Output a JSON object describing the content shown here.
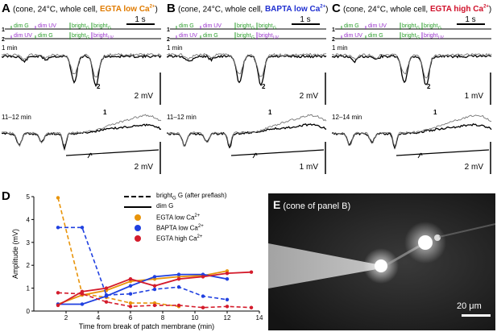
{
  "panels": [
    {
      "letter": "A",
      "title_pre": "(cone, 24°C, whole cell, ",
      "title_hl": "EGTA low Ca",
      "title_sup": "2+",
      "title_post": ")",
      "hl_color": "#e07b00",
      "scale_top": "2 mV",
      "scale_bot": "2 mV",
      "time_top": "1 min",
      "time_bot": "11–12 min",
      "scale_time": "1 s"
    },
    {
      "letter": "B",
      "title_pre": "(cone, 24°C, whole cell, ",
      "title_hl": "BAPTA low Ca",
      "title_sup": "2+",
      "title_post": ")",
      "hl_color": "#2030d0",
      "scale_top": "2 mV",
      "scale_bot": "1 mV",
      "time_top": "1 min",
      "time_bot": "11–12 min",
      "scale_time": "1 s"
    },
    {
      "letter": "C",
      "title_pre": "(cone, 24°C, whole cell, ",
      "title_hl": "EGTA high Ca",
      "title_sup": "2+",
      "title_post": ")",
      "hl_color": "#d0102a",
      "scale_top": "1 mV",
      "scale_bot": "2 mV",
      "time_top": "1 min",
      "time_bot": "12–14 min",
      "scale_time": "1 s"
    }
  ],
  "stim": {
    "row1": [
      "dim G",
      "dim UV",
      "bright",
      "G",
      "bright",
      "G"
    ],
    "row2": [
      "dim UV",
      "dim G",
      "bright",
      "G",
      "bright",
      "UV"
    ],
    "sub": "G",
    "trace_labels": [
      "1",
      "2"
    ]
  },
  "colors": {
    "green": "#2a9d2a",
    "purple": "#9932cc",
    "orange": "#e8940a",
    "blue": "#2040e0",
    "red": "#d41c2c"
  },
  "panel_d": {
    "letter": "D",
    "legend_dashed": "bright",
    "legend_dashed_sub": "G",
    "legend_dashed_post": " G (after preflash)",
    "legend_solid": "dim G",
    "chart_data": {
      "type": "line",
      "xlabel": "Time from break of patch membrane (min)",
      "ylabel": "Amplitude (mV)",
      "xlim": [
        0,
        14
      ],
      "ylim": [
        0,
        5
      ],
      "xticks": [
        2,
        4,
        6,
        8,
        10,
        12,
        14
      ],
      "yticks": [
        0,
        1,
        2,
        3,
        4,
        5
      ],
      "series": [
        {
          "name": "EGTA low Ca2+",
          "color": "#e8940a",
          "style": "solid",
          "x": [
            1.5,
            3,
            4.5,
            6,
            7.5,
            9,
            10.5,
            12
          ],
          "y": [
            0.3,
            0.7,
            0.9,
            1.3,
            1.4,
            1.5,
            1.55,
            1.75
          ]
        },
        {
          "name": "EGTA low Ca2+",
          "color": "#e8940a",
          "style": "dashed",
          "x": [
            1.5,
            3,
            4.5,
            6,
            7.5,
            9
          ],
          "y": [
            4.95,
            0.75,
            0.6,
            0.35,
            0.35,
            0.2
          ]
        },
        {
          "name": "BAPTA low Ca2+",
          "color": "#2040e0",
          "style": "solid",
          "x": [
            1.5,
            3,
            4.5,
            6,
            7.5,
            9,
            10.5,
            12
          ],
          "y": [
            0.3,
            0.3,
            0.65,
            1.1,
            1.5,
            1.6,
            1.6,
            1.4
          ]
        },
        {
          "name": "BAPTA low Ca2+",
          "color": "#2040e0",
          "style": "dashed",
          "x": [
            1.5,
            3,
            4.5,
            6,
            7.5,
            9,
            10.5,
            12
          ],
          "y": [
            3.65,
            3.65,
            0.7,
            0.75,
            0.95,
            1.05,
            0.65,
            0.5
          ]
        },
        {
          "name": "EGTA high Ca2+",
          "color": "#d41c2c",
          "style": "solid",
          "x": [
            1.5,
            3,
            4.5,
            6,
            7.5,
            9,
            10.5,
            12,
            13.5
          ],
          "y": [
            0.25,
            0.85,
            1.0,
            1.4,
            1.1,
            1.4,
            1.5,
            1.65,
            1.7
          ]
        },
        {
          "name": "EGTA high Ca2+",
          "color": "#d41c2c",
          "style": "dashed",
          "x": [
            1.5,
            3,
            4.5,
            6,
            7.5,
            9,
            10.5,
            12,
            13.5
          ],
          "y": [
            0.8,
            0.75,
            0.4,
            0.2,
            0.25,
            0.25,
            0.15,
            0.2,
            0.15
          ]
        }
      ]
    }
  },
  "panel_e": {
    "letter": "E",
    "caption": "(cone of panel B)",
    "scalebar": "20 μm"
  }
}
